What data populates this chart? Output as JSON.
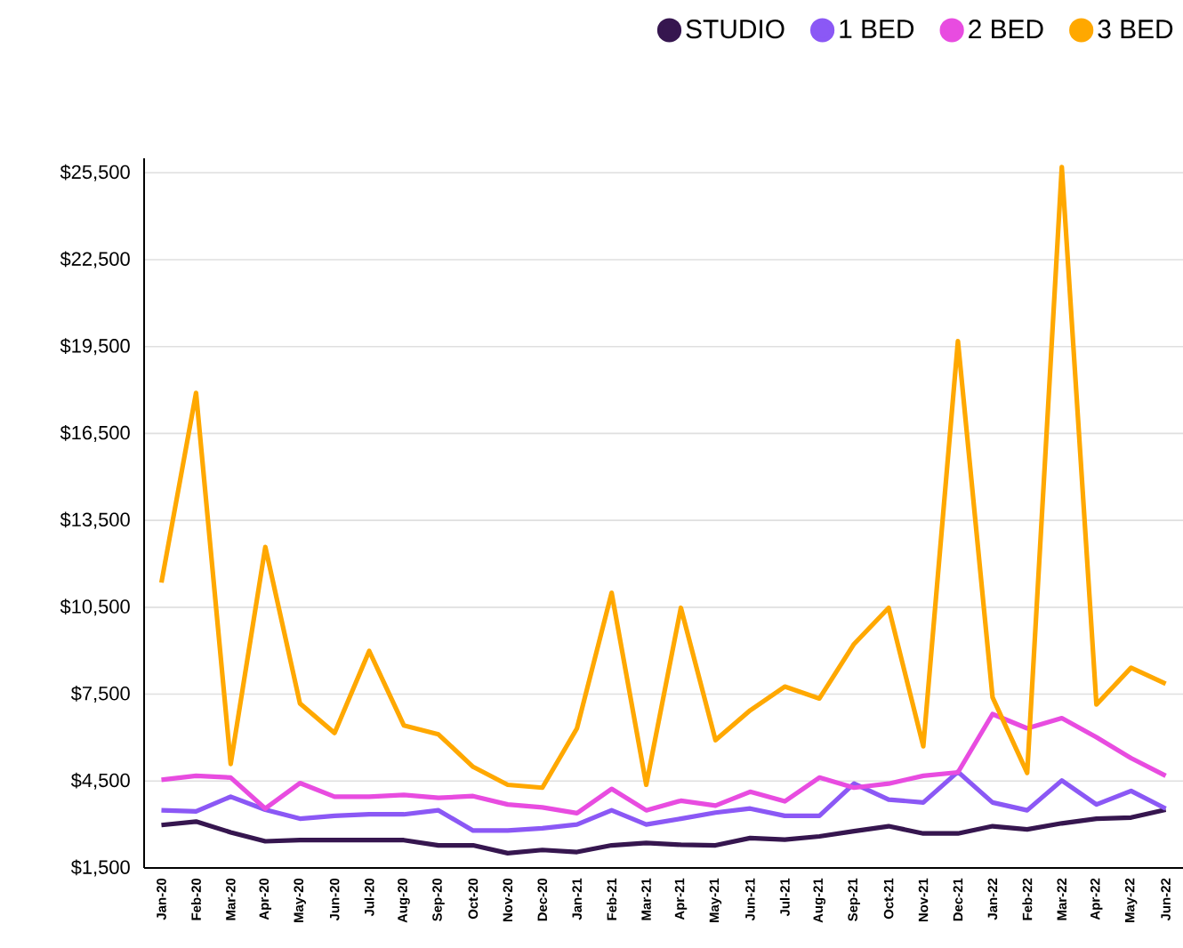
{
  "chart_data": {
    "type": "line",
    "categories": [
      "Jan-20",
      "Feb-20",
      "Mar-20",
      "Apr-20",
      "May-20",
      "Jun-20",
      "Jul-20",
      "Aug-20",
      "Sep-20",
      "Oct-20",
      "Nov-20",
      "Dec-20",
      "Jan-21",
      "Feb-21",
      "Mar-21",
      "Apr-21",
      "May-21",
      "Jun-21",
      "Jul-21",
      "Aug-21",
      "Sep-21",
      "Oct-21",
      "Nov-21",
      "Dec-21",
      "Jan-22",
      "Feb-22",
      "Mar-22",
      "Apr-22",
      "May-22",
      "Jun-22"
    ],
    "series": [
      {
        "name": "STUDIO",
        "color": "#36164f",
        "values": [
          2980,
          3100,
          2730,
          2420,
          2460,
          2460,
          2460,
          2460,
          2280,
          2280,
          2010,
          2120,
          2050,
          2280,
          2360,
          2300,
          2280,
          2530,
          2480,
          2590,
          2770,
          2940,
          2690,
          2690,
          2940,
          2830,
          3040,
          3200,
          3240,
          3510
        ]
      },
      {
        "name": "1 BED",
        "color": "#8b58f5",
        "values": [
          3490,
          3450,
          3960,
          3510,
          3200,
          3300,
          3350,
          3350,
          3490,
          2790,
          2790,
          2870,
          3000,
          3490,
          3000,
          3200,
          3410,
          3550,
          3300,
          3300,
          4410,
          3860,
          3760,
          4820,
          3760,
          3490,
          4520,
          3690,
          4160,
          3550
        ]
      },
      {
        "name": "2 BED",
        "color": "#e84ce0",
        "values": [
          4540,
          4680,
          4620,
          3550,
          4430,
          3960,
          3960,
          4020,
          3920,
          3980,
          3690,
          3590,
          3390,
          4230,
          3490,
          3820,
          3650,
          4130,
          3800,
          4620,
          4270,
          4410,
          4680,
          4800,
          6810,
          6320,
          6670,
          6010,
          5290,
          4680
        ]
      },
      {
        "name": "3 BED",
        "color": "#ffa800",
        "values": [
          11350,
          17900,
          5090,
          12580,
          7180,
          6160,
          8990,
          6420,
          6110,
          4990,
          4370,
          4270,
          6320,
          11000,
          4370,
          10480,
          5910,
          6940,
          7760,
          7350,
          9230,
          10480,
          5700,
          19690,
          7390,
          4780,
          25700,
          7140,
          8410,
          7860
        ]
      }
    ],
    "ylim": [
      1500,
      26000
    ],
    "yticks": [
      {
        "value": 1500,
        "label": "$1,500"
      },
      {
        "value": 4500,
        "label": "$4,500"
      },
      {
        "value": 7500,
        "label": "$7,500"
      },
      {
        "value": 10500,
        "label": "$10,500"
      },
      {
        "value": 13500,
        "label": "$13,500"
      },
      {
        "value": 16500,
        "label": "$16,500"
      },
      {
        "value": 19500,
        "label": "$19,500"
      },
      {
        "value": 22500,
        "label": "$22,500"
      },
      {
        "value": 25500,
        "label": "$25,500"
      }
    ],
    "grid": "y",
    "legend": "top right",
    "line_style": "solid"
  }
}
